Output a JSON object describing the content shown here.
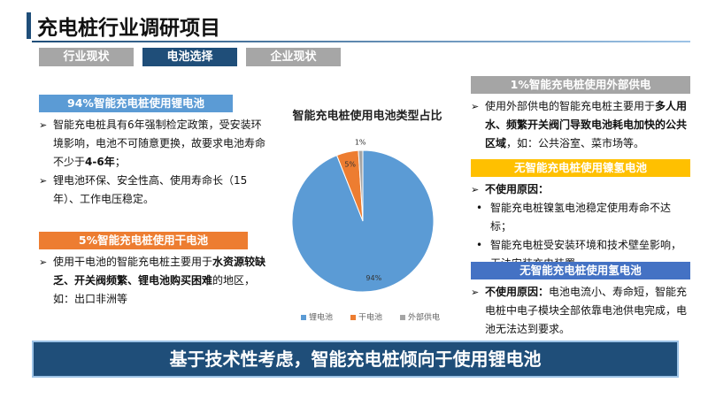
{
  "header": {
    "title": "充电桩行业调研项目",
    "tabs": [
      {
        "label": "行业现状",
        "active": false
      },
      {
        "label": "电池选择",
        "active": true
      },
      {
        "label": "企业现状",
        "active": false
      }
    ]
  },
  "left_sections": [
    {
      "header": "94%智能充电桩使用锂电池",
      "color": "#5b9bd5",
      "items": [
        {
          "style": "arrow",
          "runs": [
            {
              "text": "智能充电桩具有6年强制检定政策，受安装环境影响，电池不可随意更换，故要求电池寿命不少于",
              "bold": false
            },
            {
              "text": "4-6年",
              "bold": true
            },
            {
              "text": "；",
              "bold": false
            }
          ]
        },
        {
          "style": "arrow",
          "runs": [
            {
              "text": "锂电池环保、安全性高、使用寿命长（15年）、工作电压稳定。",
              "bold": false
            }
          ]
        }
      ]
    },
    {
      "header": "5%智能充电桩使用干电池",
      "color": "#ed7d31",
      "items": [
        {
          "style": "arrow",
          "runs": [
            {
              "text": "使用干电池的智能充电桩主要用于",
              "bold": false
            },
            {
              "text": "水资源较缺乏、开关阀频繁、锂电池购买困难",
              "bold": true
            },
            {
              "text": "的地区，如：出口非洲等",
              "bold": false
            }
          ]
        }
      ]
    }
  ],
  "right_sections": [
    {
      "header": "1%智能充电桩使用外部供电",
      "color": "#a5a5a5",
      "items": [
        {
          "style": "arrow",
          "runs": [
            {
              "text": "使用外部供电的智能充电桩主要用于",
              "bold": false
            },
            {
              "text": "多人用水、频繁开关阀门导致电池耗电加快的公共区域",
              "bold": true
            },
            {
              "text": "，如：公共浴室、菜市场等。",
              "bold": false
            }
          ]
        }
      ]
    },
    {
      "header": "无智能充电桩使用镍氢电池",
      "color": "#ffc000",
      "items": [
        {
          "style": "arrow",
          "runs": [
            {
              "text": "不使用原因：",
              "bold": true
            }
          ]
        },
        {
          "style": "dot",
          "runs": [
            {
              "text": "智能充电桩镍氢电池稳定使用寿命不达标；",
              "bold": false
            }
          ]
        },
        {
          "style": "dot",
          "runs": [
            {
              "text": "智能充电桩受安装环境和技术壁垒影响，无法安装充电装置。",
              "bold": false
            }
          ]
        }
      ]
    },
    {
      "header": "无智能充电桩使用氢电池",
      "color": "#4472c4",
      "items": [
        {
          "style": "arrow",
          "runs": [
            {
              "text": "不使用原因：",
              "bold": true
            },
            {
              "text": "电池电流小、寿命短，智能充电桩中电子模块全部依靠电池供电完成，电池无法达到要求。",
              "bold": false
            }
          ]
        }
      ]
    }
  ],
  "chart_data": {
    "type": "pie",
    "title": "智能充电桩使用电池类型占比",
    "categories": [
      "锂电池",
      "干电池",
      "外部供电"
    ],
    "values": [
      94,
      5,
      1
    ],
    "value_labels": [
      "94%",
      "5%",
      "1%"
    ],
    "colors": [
      "#5b9bd5",
      "#ed7d31",
      "#a5a5a5"
    ],
    "legend": "bottom"
  },
  "banner": {
    "text": "基于技术性考虑，智能充电桩倾向于使用锂电池"
  }
}
